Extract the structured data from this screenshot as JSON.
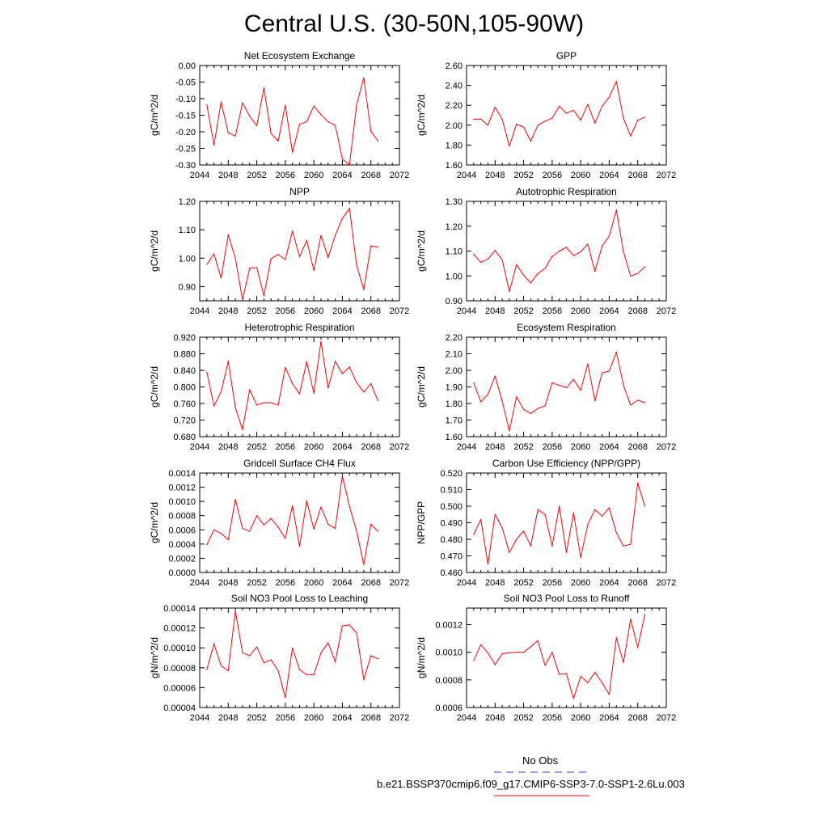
{
  "figure": {
    "title": "Central U.S. (30-50N,105-90W)",
    "legend": {
      "obs_label": "No Obs",
      "model_label": "b.e21.BSSP370cmip6.f09_g17.CMIP6-SSP3-7.0-SSP1-2.6Lu.003",
      "obs_color": "#3333cc",
      "model_color": "#ff0000"
    }
  },
  "chart_data": [
    {
      "type": "line",
      "title": "Net Ecosystem Exchange",
      "ylabel": "gC/m^2/d",
      "xlim": [
        2044,
        2072
      ],
      "ylim": [
        -0.3,
        0.0
      ],
      "x_ticks": [
        "2044",
        "2048",
        "2052",
        "2056",
        "2060",
        "2064",
        "2068",
        "2072"
      ],
      "y_ticks": [
        {
          "v": 0.0,
          "label": "0.00"
        },
        {
          "v": -0.05,
          "label": "-0.05"
        },
        {
          "v": -0.1,
          "label": "-0.10"
        },
        {
          "v": -0.15,
          "label": "-0.15"
        },
        {
          "v": -0.2,
          "label": "-0.20"
        },
        {
          "v": -0.25,
          "label": "-0.25"
        },
        {
          "v": -0.3,
          "label": "-0.30"
        }
      ],
      "x": [
        2045,
        2046,
        2047,
        2048,
        2049,
        2050,
        2051,
        2052,
        2053,
        2054,
        2055,
        2056,
        2057,
        2058,
        2059,
        2060,
        2061,
        2062,
        2063,
        2064,
        2065,
        2066,
        2067,
        2068,
        2069
      ],
      "series": [
        {
          "color": "#ff0000",
          "values": [
            -0.118,
            -0.24,
            -0.11,
            -0.203,
            -0.213,
            -0.112,
            -0.153,
            -0.182,
            -0.068,
            -0.205,
            -0.228,
            -0.12,
            -0.262,
            -0.177,
            -0.17,
            -0.122,
            -0.148,
            -0.17,
            -0.18,
            -0.282,
            -0.3,
            -0.118,
            -0.037,
            -0.198,
            -0.228
          ]
        }
      ]
    },
    {
      "type": "line",
      "title": "GPP",
      "ylabel": "gC/m^2/d",
      "xlim": [
        2044,
        2072
      ],
      "ylim": [
        1.6,
        2.6
      ],
      "x_ticks": [
        "2044",
        "2048",
        "2052",
        "2056",
        "2060",
        "2064",
        "2068",
        "2072"
      ],
      "y_ticks": [
        {
          "v": 1.6,
          "label": "1.60"
        },
        {
          "v": 1.8,
          "label": "1.80"
        },
        {
          "v": 2.0,
          "label": "2.00"
        },
        {
          "v": 2.2,
          "label": "2.20"
        },
        {
          "v": 2.4,
          "label": "2.40"
        },
        {
          "v": 2.6,
          "label": "2.60"
        }
      ],
      "x": [
        2045,
        2046,
        2047,
        2048,
        2049,
        2050,
        2051,
        2052,
        2053,
        2054,
        2055,
        2056,
        2057,
        2058,
        2059,
        2060,
        2061,
        2062,
        2063,
        2064,
        2065,
        2066,
        2067,
        2068,
        2069
      ],
      "series": [
        {
          "color": "#ff0000",
          "values": [
            2.06,
            2.06,
            2.0,
            2.18,
            2.06,
            1.79,
            2.01,
            1.98,
            1.84,
            2.0,
            2.04,
            2.07,
            2.19,
            2.12,
            2.15,
            2.05,
            2.21,
            2.02,
            2.19,
            2.28,
            2.44,
            2.07,
            1.89,
            2.05,
            2.08
          ]
        }
      ]
    },
    {
      "type": "line",
      "title": "NPP",
      "ylabel": "gC/m^2/d",
      "xlim": [
        2044,
        2072
      ],
      "ylim": [
        0.85,
        1.2
      ],
      "x_ticks": [
        "2044",
        "2048",
        "2052",
        "2056",
        "2060",
        "2064",
        "2068",
        "2072"
      ],
      "y_ticks": [
        {
          "v": 0.9,
          "label": "0.90"
        },
        {
          "v": 1.0,
          "label": "1.00"
        },
        {
          "v": 1.1,
          "label": "1.10"
        },
        {
          "v": 1.2,
          "label": "1.20"
        }
      ],
      "x": [
        2045,
        2046,
        2047,
        2048,
        2049,
        2050,
        2051,
        2052,
        2053,
        2054,
        2055,
        2056,
        2057,
        2058,
        2059,
        2060,
        2061,
        2062,
        2063,
        2064,
        2065,
        2066,
        2067,
        2068,
        2069
      ],
      "series": [
        {
          "color": "#ff0000",
          "values": [
            0.978,
            1.015,
            0.93,
            1.082,
            1.0,
            0.853,
            0.965,
            0.967,
            0.868,
            0.998,
            1.013,
            0.995,
            1.096,
            1.005,
            1.063,
            0.957,
            1.08,
            1.002,
            1.08,
            1.14,
            1.175,
            0.975,
            0.89,
            1.043,
            1.04
          ]
        }
      ]
    },
    {
      "type": "line",
      "title": "Autotrophic Respiration",
      "ylabel": "gC/m^2/d",
      "xlim": [
        2044,
        2072
      ],
      "ylim": [
        0.9,
        1.3
      ],
      "x_ticks": [
        "2044",
        "2048",
        "2052",
        "2056",
        "2060",
        "2064",
        "2068",
        "2072"
      ],
      "y_ticks": [
        {
          "v": 0.9,
          "label": "0.90"
        },
        {
          "v": 1.0,
          "label": "1.00"
        },
        {
          "v": 1.1,
          "label": "1.10"
        },
        {
          "v": 1.2,
          "label": "1.20"
        },
        {
          "v": 1.3,
          "label": "1.30"
        }
      ],
      "x": [
        2045,
        2046,
        2047,
        2048,
        2049,
        2050,
        2051,
        2052,
        2053,
        2054,
        2055,
        2056,
        2057,
        2058,
        2059,
        2060,
        2061,
        2062,
        2063,
        2064,
        2065,
        2066,
        2067,
        2068,
        2069
      ],
      "series": [
        {
          "color": "#ff0000",
          "values": [
            1.087,
            1.055,
            1.068,
            1.102,
            1.065,
            0.937,
            1.045,
            1.003,
            0.972,
            1.01,
            1.03,
            1.078,
            1.1,
            1.115,
            1.082,
            1.097,
            1.128,
            1.018,
            1.12,
            1.16,
            1.265,
            1.097,
            1.0,
            1.01,
            1.037
          ]
        }
      ]
    },
    {
      "type": "line",
      "title": "Heterotrophic Respiration",
      "ylabel": "gC/m^2/d",
      "xlim": [
        2044,
        2072
      ],
      "ylim": [
        0.68,
        0.92
      ],
      "x_ticks": [
        "2044",
        "2048",
        "2052",
        "2056",
        "2060",
        "2064",
        "2068",
        "2072"
      ],
      "y_ticks": [
        {
          "v": 0.68,
          "label": "0.680"
        },
        {
          "v": 0.72,
          "label": "0.720"
        },
        {
          "v": 0.76,
          "label": "0.760"
        },
        {
          "v": 0.8,
          "label": "0.800"
        },
        {
          "v": 0.84,
          "label": "0.840"
        },
        {
          "v": 0.88,
          "label": "0.880"
        },
        {
          "v": 0.92,
          "label": "0.920"
        }
      ],
      "x": [
        2045,
        2046,
        2047,
        2048,
        2049,
        2050,
        2051,
        2052,
        2053,
        2054,
        2055,
        2056,
        2057,
        2058,
        2059,
        2060,
        2061,
        2062,
        2063,
        2064,
        2065,
        2066,
        2067,
        2068,
        2069
      ],
      "series": [
        {
          "color": "#ff0000",
          "values": [
            0.836,
            0.754,
            0.788,
            0.862,
            0.75,
            0.697,
            0.793,
            0.756,
            0.762,
            0.762,
            0.756,
            0.847,
            0.808,
            0.783,
            0.861,
            0.785,
            0.91,
            0.797,
            0.862,
            0.832,
            0.848,
            0.81,
            0.788,
            0.808,
            0.766
          ]
        }
      ]
    },
    {
      "type": "line",
      "title": "Ecosystem Respiration",
      "ylabel": "gC/m^2/d",
      "xlim": [
        2044,
        2072
      ],
      "ylim": [
        1.6,
        2.2
      ],
      "x_ticks": [
        "2044",
        "2048",
        "2052",
        "2056",
        "2060",
        "2064",
        "2068",
        "2072"
      ],
      "y_ticks": [
        {
          "v": 1.6,
          "label": "1.60"
        },
        {
          "v": 1.7,
          "label": "1.70"
        },
        {
          "v": 1.8,
          "label": "1.80"
        },
        {
          "v": 1.9,
          "label": "1.90"
        },
        {
          "v": 2.0,
          "label": "2.00"
        },
        {
          "v": 2.1,
          "label": "2.10"
        },
        {
          "v": 2.2,
          "label": "2.20"
        }
      ],
      "x": [
        2045,
        2046,
        2047,
        2048,
        2049,
        2050,
        2051,
        2052,
        2053,
        2054,
        2055,
        2056,
        2057,
        2058,
        2059,
        2060,
        2061,
        2062,
        2063,
        2064,
        2065,
        2066,
        2067,
        2068,
        2069
      ],
      "series": [
        {
          "color": "#ff0000",
          "values": [
            1.925,
            1.81,
            1.855,
            1.965,
            1.815,
            1.635,
            1.84,
            1.765,
            1.74,
            1.77,
            1.785,
            1.925,
            1.91,
            1.895,
            1.945,
            1.88,
            2.04,
            1.815,
            1.985,
            1.995,
            2.11,
            1.91,
            1.79,
            1.82,
            1.805
          ]
        }
      ]
    },
    {
      "type": "line",
      "title": "Gridcell Surface CH4 Flux",
      "ylabel": "gC/m^2/d",
      "xlim": [
        2044,
        2072
      ],
      "ylim": [
        0.0,
        0.0014
      ],
      "x_ticks": [
        "2044",
        "2048",
        "2052",
        "2056",
        "2060",
        "2064",
        "2068",
        "2072"
      ],
      "y_ticks": [
        {
          "v": 0.0,
          "label": "0.0000"
        },
        {
          "v": 0.0002,
          "label": "0.0002"
        },
        {
          "v": 0.0004,
          "label": "0.0004"
        },
        {
          "v": 0.0006,
          "label": "0.0006"
        },
        {
          "v": 0.0008,
          "label": "0.0008"
        },
        {
          "v": 0.001,
          "label": "0.0010"
        },
        {
          "v": 0.0012,
          "label": "0.0012"
        },
        {
          "v": 0.0014,
          "label": "0.0014"
        }
      ],
      "x": [
        2045,
        2046,
        2047,
        2048,
        2049,
        2050,
        2051,
        2052,
        2053,
        2054,
        2055,
        2056,
        2057,
        2058,
        2059,
        2060,
        2061,
        2062,
        2063,
        2064,
        2065,
        2066,
        2067,
        2068,
        2069
      ],
      "series": [
        {
          "color": "#ff0000",
          "values": [
            0.00039,
            0.0006,
            0.00055,
            0.00046,
            0.00103,
            0.00062,
            0.00058,
            0.0008,
            0.00067,
            0.00076,
            0.00064,
            0.00048,
            0.00094,
            0.00037,
            0.00101,
            0.00061,
            0.00092,
            0.00068,
            0.00062,
            0.00136,
            0.00093,
            0.00058,
            0.00011,
            0.00068,
            0.00058
          ]
        }
      ]
    },
    {
      "type": "line",
      "title": "Carbon Use Efficiency (NPP/GPP)",
      "ylabel": "NPP/GPP",
      "xlim": [
        2044,
        2072
      ],
      "ylim": [
        0.46,
        0.52
      ],
      "x_ticks": [
        "2044",
        "2048",
        "2052",
        "2056",
        "2060",
        "2064",
        "2068",
        "2072"
      ],
      "y_ticks": [
        {
          "v": 0.46,
          "label": "0.460"
        },
        {
          "v": 0.47,
          "label": "0.470"
        },
        {
          "v": 0.48,
          "label": "0.480"
        },
        {
          "v": 0.49,
          "label": "0.490"
        },
        {
          "v": 0.5,
          "label": "0.500"
        },
        {
          "v": 0.51,
          "label": "0.510"
        },
        {
          "v": 0.52,
          "label": "0.520"
        }
      ],
      "x": [
        2045,
        2046,
        2047,
        2048,
        2049,
        2050,
        2051,
        2052,
        2053,
        2054,
        2055,
        2056,
        2057,
        2058,
        2059,
        2060,
        2061,
        2062,
        2063,
        2064,
        2065,
        2066,
        2067,
        2068,
        2069
      ],
      "series": [
        {
          "color": "#ff0000",
          "values": [
            0.483,
            0.492,
            0.465,
            0.495,
            0.487,
            0.472,
            0.48,
            0.485,
            0.476,
            0.498,
            0.495,
            0.476,
            0.5,
            0.472,
            0.496,
            0.469,
            0.489,
            0.498,
            0.494,
            0.499,
            0.484,
            0.476,
            0.477,
            0.514,
            0.5
          ]
        }
      ]
    },
    {
      "type": "line",
      "title": "Soil NO3 Pool Loss to Leaching",
      "ylabel": "gN/m^2/d",
      "xlim": [
        2044,
        2072
      ],
      "ylim": [
        4e-05,
        0.00014
      ],
      "x_ticks": [
        "2044",
        "2048",
        "2052",
        "2056",
        "2060",
        "2064",
        "2068",
        "2072"
      ],
      "y_ticks": [
        {
          "v": 4e-05,
          "label": "0.00004"
        },
        {
          "v": 6e-05,
          "label": "0.00006"
        },
        {
          "v": 8e-05,
          "label": "0.00008"
        },
        {
          "v": 0.0001,
          "label": "0.00010"
        },
        {
          "v": 0.00012,
          "label": "0.00012"
        },
        {
          "v": 0.00014,
          "label": "0.00014"
        }
      ],
      "x": [
        2045,
        2046,
        2047,
        2048,
        2049,
        2050,
        2051,
        2052,
        2053,
        2054,
        2055,
        2056,
        2057,
        2058,
        2059,
        2060,
        2061,
        2062,
        2063,
        2064,
        2065,
        2066,
        2067,
        2068,
        2069
      ],
      "series": [
        {
          "color": "#ff0000",
          "values": [
            7.8e-05,
            0.000104,
            8.2e-05,
            7.7e-05,
            0.000137,
            9.5e-05,
            9.2e-05,
            0.000101,
            8.5e-05,
            8.8e-05,
            7.7e-05,
            5e-05,
            0.0001,
            7.8e-05,
            7.3e-05,
            7.3e-05,
            9.5e-05,
            0.000105,
            8.6e-05,
            0.000122,
            0.000123,
            0.000115,
            6.8e-05,
            9.2e-05,
            8.9e-05
          ]
        }
      ]
    },
    {
      "type": "line",
      "title": "Soil NO3 Pool Loss to Runoff",
      "ylabel": "gN/m^2/d",
      "xlim": [
        2044,
        2072
      ],
      "ylim": [
        0.0006,
        0.00132
      ],
      "x_ticks": [
        "2044",
        "2048",
        "2052",
        "2056",
        "2060",
        "2064",
        "2068",
        "2072"
      ],
      "y_ticks": [
        {
          "v": 0.0006,
          "label": "0.0006"
        },
        {
          "v": 0.0008,
          "label": "0.0008"
        },
        {
          "v": 0.001,
          "label": "0.0010"
        },
        {
          "v": 0.0012,
          "label": "0.0012"
        }
      ],
      "x": [
        2045,
        2046,
        2047,
        2048,
        2049,
        2050,
        2051,
        2052,
        2053,
        2054,
        2055,
        2056,
        2057,
        2058,
        2059,
        2060,
        2061,
        2062,
        2063,
        2064,
        2065,
        2066,
        2067,
        2068,
        2069
      ],
      "series": [
        {
          "color": "#ff0000",
          "values": [
            0.00094,
            0.001055,
            0.000995,
            0.00091,
            0.00099,
            0.000995,
            0.001,
            0.001,
            0.00104,
            0.001085,
            0.000905,
            0.001,
            0.00084,
            0.000845,
            0.000665,
            0.000825,
            0.00078,
            0.000855,
            0.00078,
            0.000695,
            0.001105,
            0.000925,
            0.00124,
            0.001035,
            0.001275
          ]
        }
      ]
    }
  ]
}
